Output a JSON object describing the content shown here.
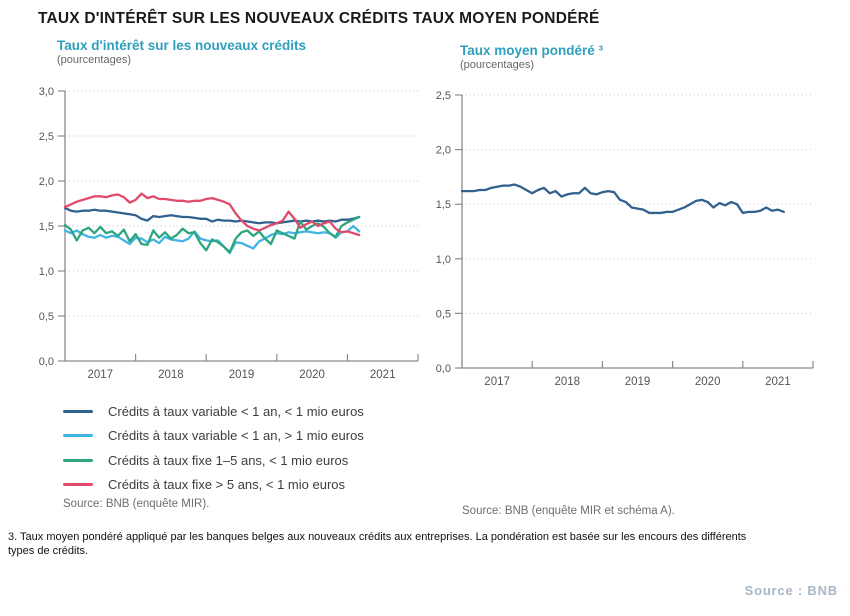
{
  "title": "TAUX D'INTÉRÊT SUR LES NOUVEAUX CRÉDITS TAUX MOYEN PONDÉRÉ",
  "footnote": {
    "line1": "3. Taux moyen pondéré appliqué par les banques belges aux nouveaux crédits aux entreprises. La pondération est basée sur les encours des différents",
    "line2": "types de crédits."
  },
  "page_source": "Source : BNB",
  "colors": {
    "accent_teal": "#2e9fbe",
    "navy": "#30618f",
    "cyan": "#41b4e6",
    "green": "#2da57d",
    "red": "#e04a6b",
    "axis": "#8a8a8a",
    "grid": "#c4c4c4",
    "tick_text": "#555555"
  },
  "chart_data": [
    {
      "type": "line",
      "title": "Taux d'intérêt sur les nouveaux crédits",
      "subtitle": "(pourcentages)",
      "source": "Source: BNB (enquête MIR).",
      "ylim": [
        0,
        3
      ],
      "ytick_values": [
        0,
        0.5,
        1,
        1.5,
        2,
        2.5,
        3
      ],
      "ytick_labels": [
        "0,0",
        "0,5",
        "1,0",
        "1,5",
        "2,0",
        "2,5",
        "3,0"
      ],
      "x_years": [
        "2017",
        "2018",
        "2019",
        "2020",
        "2021"
      ],
      "x_months_total": 60,
      "x_start": "2017-01",
      "grid": "horizontal-dotted",
      "legend_position": "below",
      "series": [
        {
          "id": "variable-lt1an-lt1mio",
          "name": "Crédits à taux variable < 1 an, < 1 mio euros",
          "color": "#30618f",
          "values": [
            1.7,
            1.67,
            1.66,
            1.67,
            1.67,
            1.68,
            1.67,
            1.67,
            1.66,
            1.65,
            1.64,
            1.63,
            1.62,
            1.58,
            1.56,
            1.61,
            1.6,
            1.61,
            1.62,
            1.61,
            1.6,
            1.6,
            1.59,
            1.58,
            1.58,
            1.55,
            1.57,
            1.56,
            1.56,
            1.55,
            1.56,
            1.55,
            1.54,
            1.53,
            1.54,
            1.54,
            1.53,
            1.54,
            1.55,
            1.56,
            1.55,
            1.56,
            1.55,
            1.56,
            1.55,
            1.56,
            1.55,
            1.57,
            1.57,
            1.58,
            1.6
          ]
        },
        {
          "id": "variable-lt1an-gt1mio",
          "name": "Crédits à taux variable < 1 an, > 1 mio euros",
          "color": "#41b4e6",
          "values": [
            1.45,
            1.42,
            1.45,
            1.41,
            1.38,
            1.37,
            1.4,
            1.37,
            1.39,
            1.38,
            1.34,
            1.3,
            1.37,
            1.36,
            1.32,
            1.35,
            1.31,
            1.38,
            1.35,
            1.34,
            1.33,
            1.36,
            1.44,
            1.36,
            1.34,
            1.33,
            1.34,
            1.27,
            1.2,
            1.32,
            1.31,
            1.28,
            1.25,
            1.33,
            1.36,
            1.4,
            1.42,
            1.41,
            1.43,
            1.42,
            1.43,
            1.44,
            1.43,
            1.42,
            1.43,
            1.42,
            1.37,
            1.43,
            1.44,
            1.5,
            1.44
          ]
        },
        {
          "id": "fixe-1-5ans-lt1mio",
          "name": "Crédits à taux fixe 1–5 ans, < 1 mio euros",
          "color": "#2da57d",
          "values": [
            1.51,
            1.46,
            1.34,
            1.45,
            1.48,
            1.42,
            1.49,
            1.42,
            1.44,
            1.39,
            1.46,
            1.33,
            1.41,
            1.3,
            1.29,
            1.45,
            1.37,
            1.43,
            1.36,
            1.4,
            1.47,
            1.42,
            1.43,
            1.31,
            1.23,
            1.35,
            1.32,
            1.27,
            1.21,
            1.36,
            1.43,
            1.45,
            1.39,
            1.44,
            1.36,
            1.3,
            1.45,
            1.42,
            1.39,
            1.36,
            1.55,
            1.46,
            1.5,
            1.53,
            1.49,
            1.42,
            1.38,
            1.5,
            1.54,
            1.57,
            1.6
          ]
        },
        {
          "id": "fixe-gt5ans-lt1mio",
          "name": "Crédits à taux fixe > 5 ans, < 1 mio euros",
          "color": "#e04a6b",
          "values": [
            1.71,
            1.74,
            1.77,
            1.79,
            1.81,
            1.83,
            1.83,
            1.82,
            1.84,
            1.85,
            1.82,
            1.76,
            1.79,
            1.86,
            1.81,
            1.83,
            1.8,
            1.8,
            1.79,
            1.78,
            1.78,
            1.77,
            1.78,
            1.78,
            1.8,
            1.81,
            1.79,
            1.77,
            1.74,
            1.64,
            1.56,
            1.5,
            1.47,
            1.45,
            1.48,
            1.51,
            1.53,
            1.56,
            1.66,
            1.58,
            1.48,
            1.52,
            1.55,
            1.5,
            1.53,
            1.55,
            1.47,
            1.43,
            1.44,
            1.42,
            1.4
          ]
        }
      ]
    },
    {
      "type": "line",
      "title": "Taux moyen pondéré ³",
      "subtitle": "(pourcentages)",
      "source": "Source: BNB (enquête MIR et schéma A).",
      "ylim": [
        0,
        2.5
      ],
      "ytick_values": [
        0,
        0.5,
        1,
        1.5,
        2,
        2.5
      ],
      "ytick_labels": [
        "0,0",
        "0,5",
        "1,0",
        "1,5",
        "2,0",
        "2,5"
      ],
      "x_years": [
        "2017",
        "2018",
        "2019",
        "2020",
        "2021"
      ],
      "x_months_total": 60,
      "x_start": "2017-01",
      "grid": "horizontal-dotted",
      "legend_position": "none",
      "series": [
        {
          "id": "taux-moyen-pondere",
          "name": "Taux moyen pondéré",
          "color": "#30618f",
          "values": [
            1.62,
            1.62,
            1.62,
            1.63,
            1.63,
            1.65,
            1.66,
            1.67,
            1.67,
            1.68,
            1.66,
            1.63,
            1.6,
            1.63,
            1.65,
            1.6,
            1.62,
            1.57,
            1.59,
            1.6,
            1.6,
            1.65,
            1.6,
            1.59,
            1.61,
            1.62,
            1.61,
            1.54,
            1.52,
            1.47,
            1.46,
            1.45,
            1.42,
            1.42,
            1.42,
            1.43,
            1.43,
            1.45,
            1.47,
            1.5,
            1.53,
            1.54,
            1.52,
            1.47,
            1.51,
            1.49,
            1.52,
            1.5,
            1.42,
            1.43,
            1.43,
            1.44,
            1.47,
            1.44,
            1.45,
            1.43
          ]
        }
      ]
    }
  ]
}
